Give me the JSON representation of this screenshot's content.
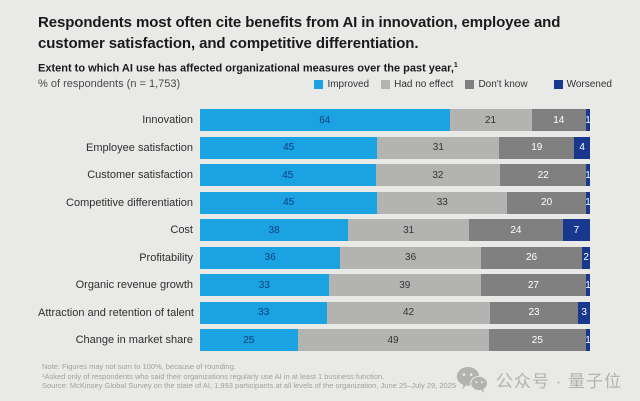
{
  "header": {
    "title": "Respondents most often cite benefits from AI in innovation, employee and customer satisfaction, and competitive differentiation.",
    "subtitle": "Extent to which AI use has affected organizational measures over the past year,",
    "subtitle_sup": "1",
    "subnote": "% of respondents (n = 1,753)"
  },
  "legend": [
    {
      "label": "Improved",
      "color": "#1ba2e2"
    },
    {
      "label": "Had no effect",
      "color": "#b3b3b1"
    },
    {
      "label": "Don't know",
      "color": "#808080"
    },
    {
      "label": "Worsened",
      "color": "#17388c"
    }
  ],
  "chart_data": {
    "type": "bar",
    "orientation": "horizontal",
    "stacked": true,
    "unit": "%",
    "categories": [
      "Innovation",
      "Employee satisfaction",
      "Customer satisfaction",
      "Competitive differentiation",
      "Cost",
      "Profitability",
      "Organic revenue growth",
      "Attraction and retention of talent",
      "Change in market share"
    ],
    "series": [
      {
        "name": "Improved",
        "color": "#1ba2e2",
        "label_color": "#0c3e79",
        "values": [
          64,
          45,
          45,
          45,
          38,
          36,
          33,
          33,
          25
        ]
      },
      {
        "name": "Had no effect",
        "color": "#b3b3b1",
        "label_color": "#333333",
        "values": [
          21,
          31,
          32,
          33,
          31,
          36,
          39,
          42,
          49
        ]
      },
      {
        "name": "Don't know",
        "color": "#808080",
        "label_color": "#ffffff",
        "values": [
          14,
          19,
          22,
          20,
          24,
          26,
          27,
          23,
          25
        ]
      },
      {
        "name": "Worsened",
        "color": "#17388c",
        "label_color": "#ffffff",
        "values": [
          1,
          4,
          1,
          1,
          7,
          2,
          1,
          3,
          1
        ]
      }
    ]
  },
  "footnotes": {
    "note": "Note: Figures may not sum to 100%, because of rounding.",
    "asterisk": "¹Asked only of respondents who said their organizations regularly use AI in at least 1 business function.",
    "source": "Source: McKinsey Global Survey on the state of AI, 1,993 participants at all levels of the organization, June 25–July 29, 2025"
  },
  "watermark": {
    "text": "公众号 · 量子位"
  }
}
